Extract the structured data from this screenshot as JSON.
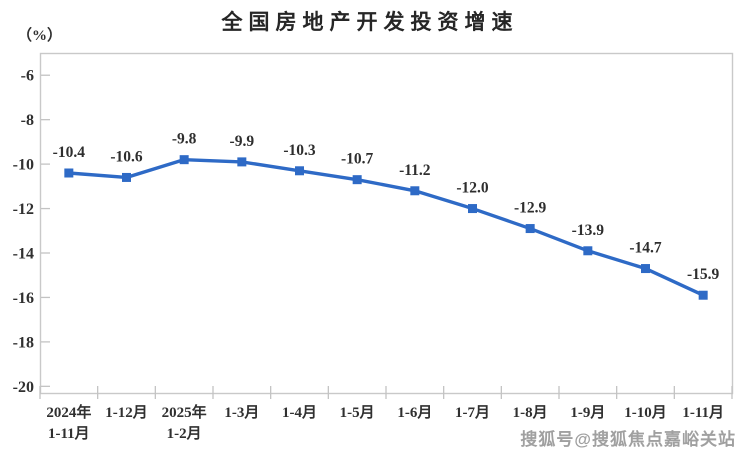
{
  "title": "全国房地产开发投资增速",
  "y_unit_label": "（%）",
  "watermark": "搜狐号@搜狐焦点嘉峪关站",
  "colors": {
    "line": "#2e6ac6",
    "marker": "#2e6ac6",
    "axis": "#c9c9c9",
    "tick": "#c3c3c3",
    "label_text": "#2e2e2e",
    "axis_text": "#303030"
  },
  "chart_data": {
    "type": "line",
    "categories": [
      [
        "2024年",
        "1-11月"
      ],
      [
        "1-12月"
      ],
      [
        "2025年",
        "1-2月"
      ],
      [
        "1-3月"
      ],
      [
        "1-4月"
      ],
      [
        "1-5月"
      ],
      [
        "1-6月"
      ],
      [
        "1-7月"
      ],
      [
        "1-8月"
      ],
      [
        "1-9月"
      ],
      [
        "1-10月"
      ],
      [
        "1-11月"
      ]
    ],
    "series": [
      {
        "name": "全国房地产开发投资增速",
        "values": [
          -10.4,
          -10.6,
          -9.8,
          -9.9,
          -10.3,
          -10.7,
          -11.2,
          -12.0,
          -12.9,
          -13.9,
          -14.7,
          -15.9
        ]
      }
    ],
    "data_labels": [
      "-10.4",
      "-10.6",
      "-9.8",
      "-9.9",
      "-10.3",
      "-10.7",
      "-11.2",
      "-12.0",
      "-12.9",
      "-13.9",
      "-14.7",
      "-15.9"
    ],
    "y_ticks": [
      -6,
      -8,
      -10,
      -12,
      -14,
      -16,
      -18,
      -20
    ],
    "ylim": [
      -20.3,
      -5.0
    ],
    "grid": false,
    "legend": "none",
    "marker": "square",
    "xlabel": "",
    "ylabel": "（%）"
  }
}
